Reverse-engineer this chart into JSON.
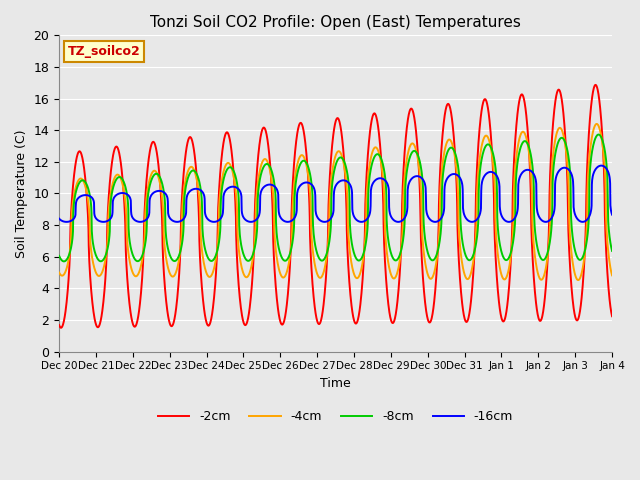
{
  "title": "Tonzi Soil CO2 Profile: Open (East) Temperatures",
  "xlabel": "Time",
  "ylabel": "Soil Temperature (C)",
  "ylim": [
    0,
    20
  ],
  "yticks": [
    0,
    2,
    4,
    6,
    8,
    10,
    12,
    14,
    16,
    18,
    20
  ],
  "series_labels": [
    "-2cm",
    "-4cm",
    "-8cm",
    "-16cm"
  ],
  "series_colors": [
    "#ff0000",
    "#ffa500",
    "#00cc00",
    "#0000ff"
  ],
  "series_linewidths": [
    1.4,
    1.4,
    1.4,
    1.4
  ],
  "annotation_text": "TZ_soilco2",
  "annotation_bbox_facecolor": "#ffffcc",
  "annotation_bbox_edgecolor": "#cc8800",
  "background_color": "#e8e8e8",
  "plot_bg_color": "#e8e8e8",
  "grid_color": "#ffffff",
  "tick_labels": [
    "Dec 20",
    "Dec 21",
    "Dec 22",
    "Dec 23",
    "Dec 24",
    "Dec 25",
    "Dec 26",
    "Dec 27",
    "Dec 28",
    "Dec 29",
    "Dec 30",
    "Dec 31",
    "Jan 1",
    "Jan 2",
    "Jan 3",
    "Jan 4"
  ],
  "tick_positions": [
    0,
    1,
    2,
    3,
    4,
    5,
    6,
    7,
    8,
    9,
    10,
    11,
    12,
    13,
    14,
    15
  ]
}
